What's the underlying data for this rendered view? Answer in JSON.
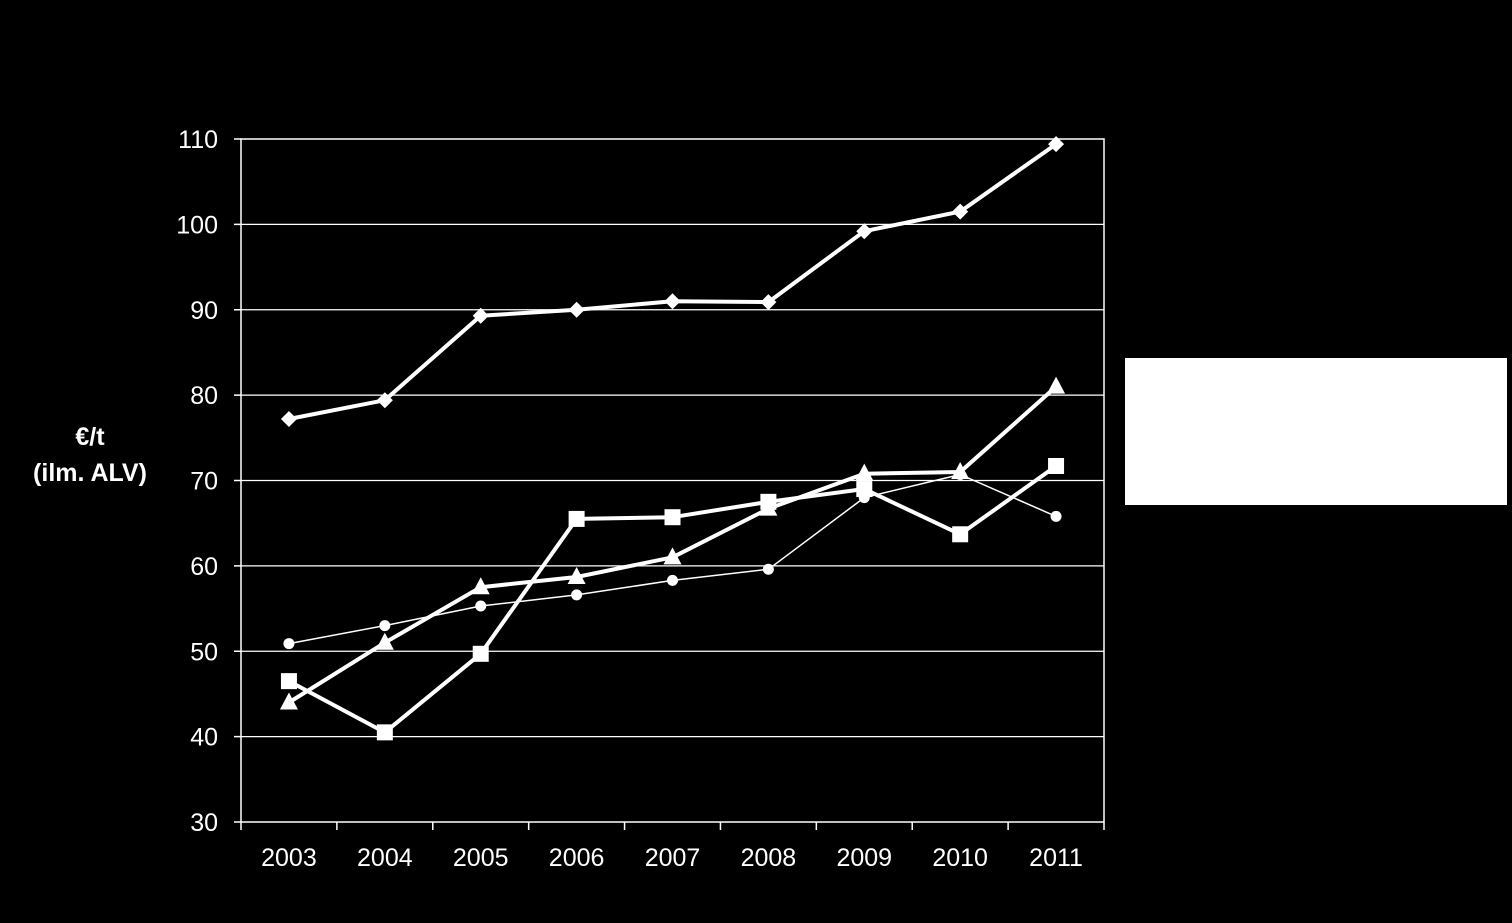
{
  "chart_data": {
    "type": "line",
    "categories": [
      "2003",
      "2004",
      "2005",
      "2006",
      "2007",
      "2008",
      "2009",
      "2010",
      "2011"
    ],
    "ylabel": [
      "€/t",
      "(ilm. ALV)"
    ],
    "ylim": [
      30,
      110
    ],
    "yticks": [
      30,
      40,
      50,
      60,
      70,
      80,
      90,
      100,
      110
    ],
    "grid": true,
    "series": [
      {
        "marker": "diamond",
        "line_width": 4,
        "values": [
          77.2,
          79.4,
          89.3,
          90.0,
          91.0,
          90.9,
          99.2,
          101.5,
          109.4
        ]
      },
      {
        "marker": "triangle",
        "line_width": 4,
        "values": [
          44.0,
          51.0,
          57.5,
          58.7,
          61.0,
          66.7,
          70.8,
          71.0,
          81.0
        ]
      },
      {
        "marker": "square",
        "line_width": 4,
        "values": [
          46.5,
          40.5,
          49.7,
          65.5,
          65.7,
          67.5,
          69.0,
          63.7,
          71.7
        ]
      },
      {
        "marker": "circle",
        "line_width": 1.5,
        "values": [
          50.9,
          53.0,
          55.3,
          56.6,
          58.3,
          59.6,
          68.0,
          70.7,
          65.8
        ]
      }
    ],
    "colors": {
      "background": "#000000",
      "lines": "#ffffff",
      "gridlines": "#ffffff"
    }
  }
}
